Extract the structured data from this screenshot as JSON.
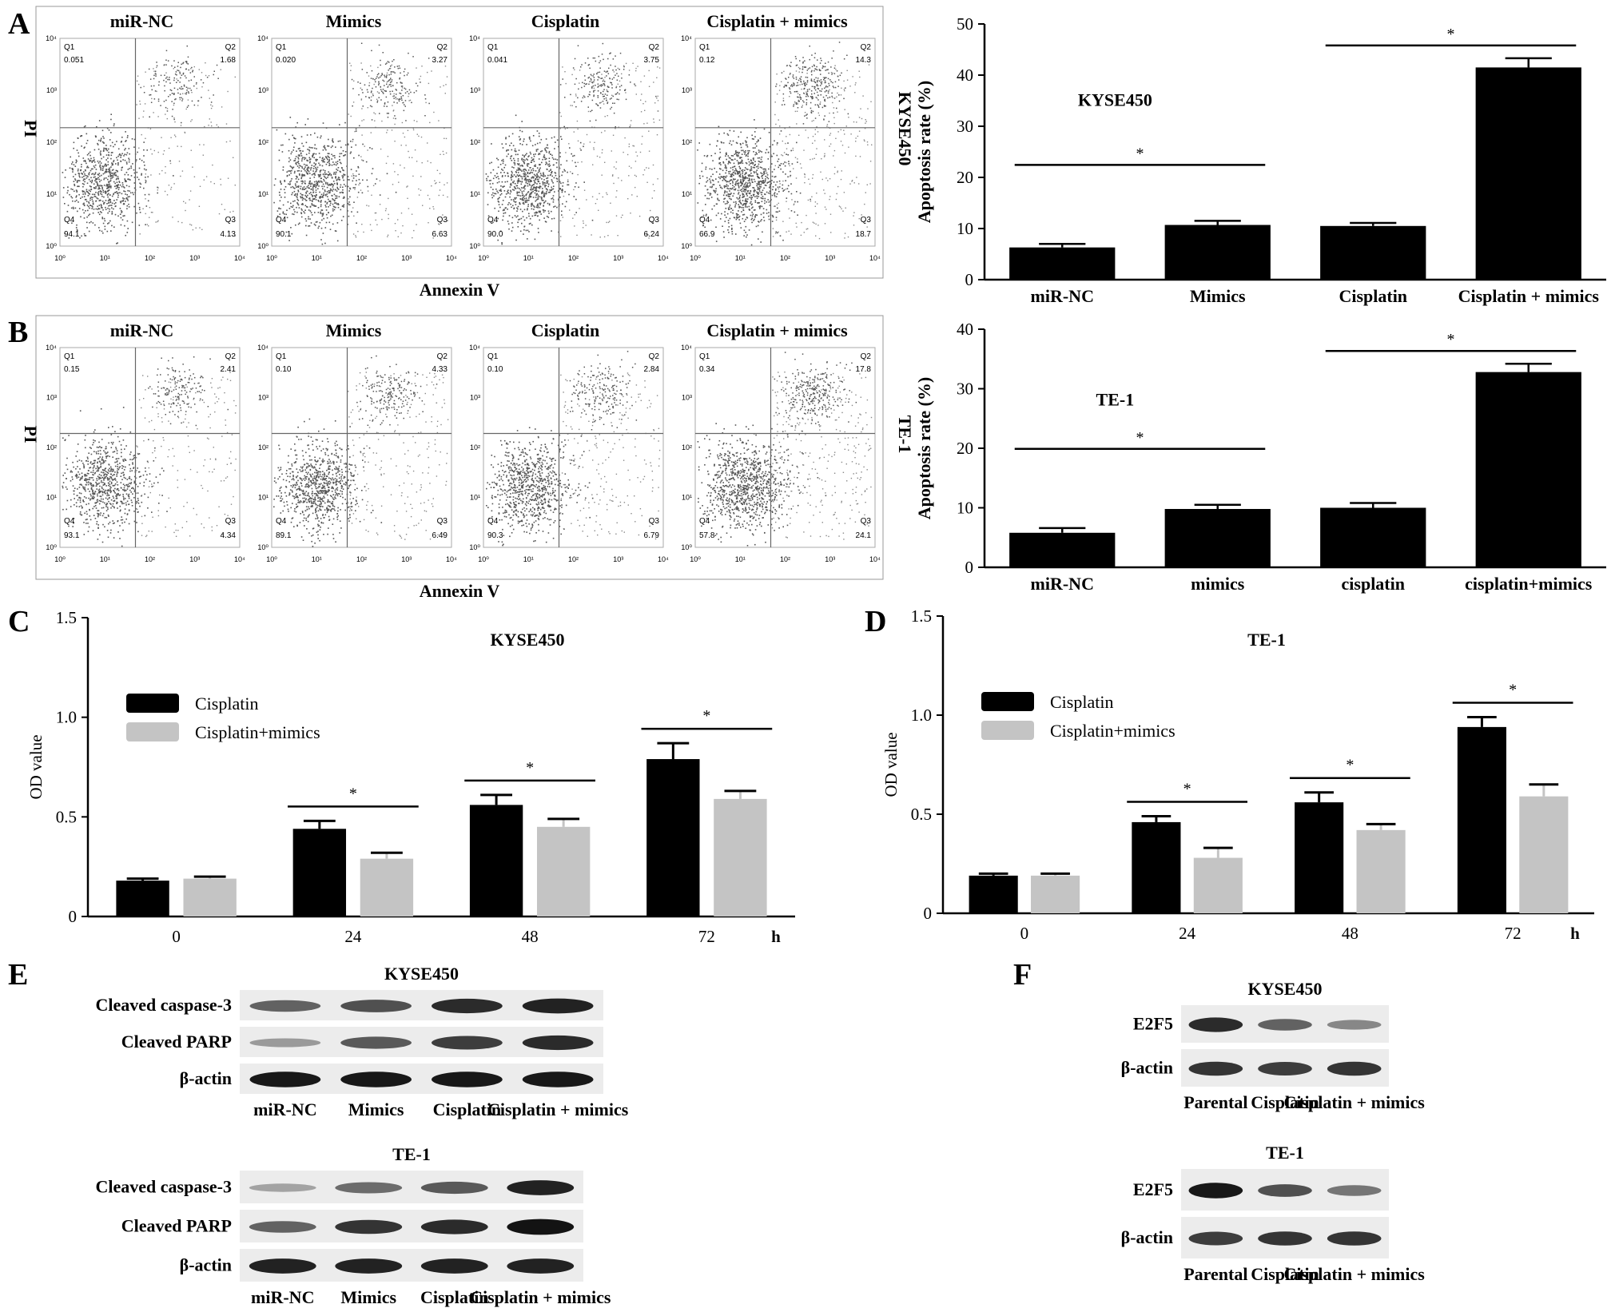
{
  "panel_letters": [
    "A",
    "B",
    "C",
    "D",
    "E",
    "F"
  ],
  "flow": {
    "A": {
      "cell_line": "KYSE450",
      "x_label": "Annexin V",
      "y_label": "PI",
      "plots": [
        {
          "title": "miR-NC",
          "q1": "0.051",
          "q2": "1.68",
          "q3": "4.13",
          "q4": "94.1",
          "cluster": 0.4
        },
        {
          "title": "Mimics",
          "q1": "0.020",
          "q2": "3.27",
          "q3": "6.63",
          "q4": "90.1",
          "cluster": 0.55
        },
        {
          "title": "Cisplatin",
          "q1": "0.041",
          "q2": "3.75",
          "q3": "6.24",
          "q4": "90.0",
          "cluster": 0.55
        },
        {
          "title": "Cisplatin + mimics",
          "q1": "0.12",
          "q2": "14.3",
          "q3": "18.7",
          "q4": "66.9",
          "cluster": 0.9
        }
      ]
    },
    "B": {
      "cell_line": "TE-1",
      "x_label": "Annexin V",
      "y_label": "PI",
      "plots": [
        {
          "title": "miR-NC",
          "q1": "0.15",
          "q2": "2.41",
          "q3": "4.34",
          "q4": "93.1",
          "cluster": 0.45
        },
        {
          "title": "Mimics",
          "q1": "0.10",
          "q2": "4.33",
          "q3": "6.49",
          "q4": "89.1",
          "cluster": 0.6
        },
        {
          "title": "Cisplatin",
          "q1": "0.10",
          "q2": "2.84",
          "q3": "6.79",
          "q4": "90.3",
          "cluster": 0.6
        },
        {
          "title": "Cisplatin + mimics",
          "q1": "0.34",
          "q2": "17.8",
          "q3": "24.1",
          "q4": "57.8",
          "cluster": 0.95
        }
      ]
    },
    "quadrant_labels": [
      "Q1",
      "Q2",
      "Q3",
      "Q4"
    ],
    "tick_labels": [
      "10⁰",
      "10¹",
      "10²",
      "10³",
      "10⁴"
    ]
  },
  "chart_data": [
    {
      "id": "A-bar",
      "type": "bar",
      "title": "KYSE450",
      "ylabel": "Apoptosis rate (%)",
      "categories": [
        "miR-NC",
        "Mimics",
        "Cisplatin",
        "Cisplatin + mimics"
      ],
      "values": [
        6.3,
        10.7,
        10.5,
        41.5
      ],
      "errors": [
        0.7,
        0.8,
        0.6,
        1.8
      ],
      "ylim": [
        0,
        50
      ],
      "yticks": [
        "0",
        "10",
        "20",
        "30",
        "40",
        "50"
      ],
      "significance": [
        {
          "from": 0,
          "to": 1,
          "label": "*"
        },
        {
          "from": 2,
          "to": 3,
          "label": "*"
        }
      ]
    },
    {
      "id": "B-bar",
      "type": "bar",
      "title": "TE-1",
      "ylabel": "Apoptosis rate (%)",
      "categories": [
        "miR-NC",
        "mimics",
        "cisplatin",
        "cisplatin+mimics"
      ],
      "values": [
        5.8,
        9.8,
        10.0,
        32.8
      ],
      "errors": [
        0.8,
        0.7,
        0.8,
        1.4
      ],
      "ylim": [
        0,
        40
      ],
      "yticks": [
        "0",
        "10",
        "20",
        "30",
        "40"
      ],
      "significance": [
        {
          "from": 0,
          "to": 1,
          "label": "*"
        },
        {
          "from": 2,
          "to": 3,
          "label": "*"
        }
      ]
    },
    {
      "id": "C-bar",
      "type": "bar",
      "title": "KYSE450",
      "ylabel": "OD value",
      "categories": [
        "0",
        "24",
        "48",
        "72"
      ],
      "unit": "h",
      "series": [
        {
          "name": "Cisplatin",
          "color": "#000000",
          "values": [
            0.18,
            0.44,
            0.56,
            0.79
          ],
          "errors": [
            0.01,
            0.04,
            0.05,
            0.08
          ]
        },
        {
          "name": "Cisplatin+mimics",
          "color": "#c4c4c4",
          "values": [
            0.19,
            0.29,
            0.45,
            0.59
          ],
          "errors": [
            0.01,
            0.03,
            0.04,
            0.04
          ]
        }
      ],
      "ylim": [
        0,
        1.5
      ],
      "yticks": [
        "0",
        "0.5",
        "1.0",
        "1.5"
      ],
      "significance": [
        "",
        "*",
        "*",
        "*"
      ]
    },
    {
      "id": "D-bar",
      "type": "bar",
      "title": "TE-1",
      "ylabel": "OD value",
      "categories": [
        "0",
        "24",
        "48",
        "72"
      ],
      "unit": "h",
      "series": [
        {
          "name": "Cisplatin",
          "color": "#000000",
          "values": [
            0.19,
            0.46,
            0.56,
            0.94
          ],
          "errors": [
            0.01,
            0.03,
            0.05,
            0.05
          ]
        },
        {
          "name": "Cisplatin+mimics",
          "color": "#c4c4c4",
          "values": [
            0.19,
            0.28,
            0.42,
            0.59
          ],
          "errors": [
            0.01,
            0.05,
            0.03,
            0.06
          ]
        }
      ],
      "ylim": [
        0,
        1.5
      ],
      "yticks": [
        "0",
        "0.5",
        "1.0",
        "1.5"
      ],
      "significance": [
        "",
        "*",
        "*",
        "*"
      ]
    }
  ],
  "blots": {
    "E": {
      "blocks": [
        {
          "title": "KYSE450",
          "rows": [
            {
              "label": "Cleaved caspase-3",
              "intensity": [
                0.55,
                0.65,
                0.85,
                0.9
              ]
            },
            {
              "label": "Cleaved PARP",
              "intensity": [
                0.25,
                0.6,
                0.75,
                0.85
              ]
            },
            {
              "label": "β-actin",
              "intensity": [
                0.95,
                0.95,
                0.95,
                0.95
              ]
            }
          ],
          "lanes": [
            "miR-NC",
            "Mimics",
            "Cisplatin",
            "Cisplatin + mimics"
          ]
        },
        {
          "title": "TE-1",
          "rows": [
            {
              "label": "Cleaved caspase-3",
              "intensity": [
                0.2,
                0.5,
                0.6,
                0.9
              ]
            },
            {
              "label": "Cleaved PARP",
              "intensity": [
                0.55,
                0.8,
                0.85,
                0.98
              ]
            },
            {
              "label": "β-actin",
              "intensity": [
                0.9,
                0.9,
                0.9,
                0.9
              ]
            }
          ],
          "lanes": [
            "miR-NC",
            "Mimics",
            "Cisplatin",
            "Cisplatin + mimics"
          ]
        }
      ]
    },
    "F": {
      "blocks": [
        {
          "title": "KYSE450",
          "rows": [
            {
              "label": "E2F5",
              "intensity": [
                0.85,
                0.55,
                0.35
              ]
            },
            {
              "label": "β-actin",
              "intensity": [
                0.8,
                0.75,
                0.8
              ]
            }
          ],
          "lanes": [
            "Parental",
            "Cisplatin",
            "Cisplatin + mimics"
          ]
        },
        {
          "title": "TE-1",
          "rows": [
            {
              "label": "E2F5",
              "intensity": [
                0.95,
                0.65,
                0.45
              ]
            },
            {
              "label": "β-actin",
              "intensity": [
                0.75,
                0.8,
                0.8
              ]
            }
          ],
          "lanes": [
            "Parental",
            "Cisplatin",
            "Cisplatin + mimics"
          ]
        }
      ]
    }
  }
}
